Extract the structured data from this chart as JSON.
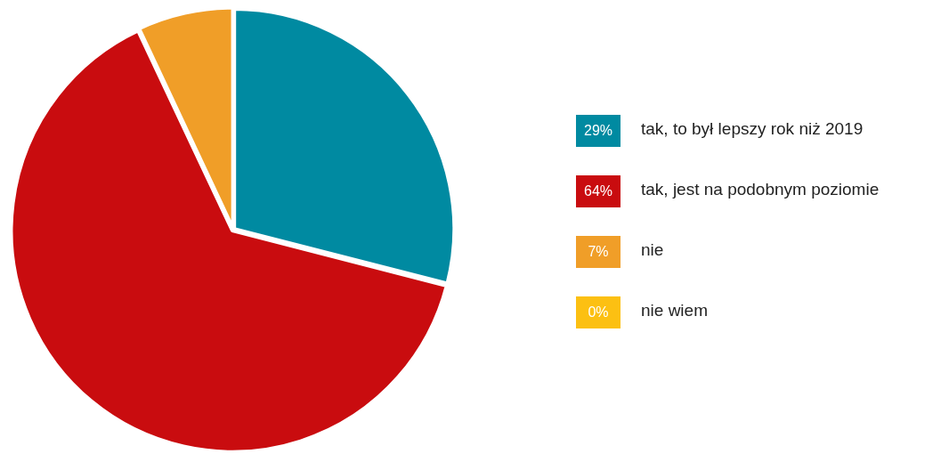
{
  "chart_data": {
    "type": "pie",
    "categories": [
      "tak, to był lepszy rok niż 2019",
      "tak, jest na podobnym poziomie",
      "nie",
      "nie wiem"
    ],
    "values": [
      29,
      64,
      7,
      0
    ],
    "colors": [
      "#008aa1",
      "#c90c0f",
      "#f09e28",
      "#fcc012"
    ],
    "value_labels": [
      "29%",
      "64%",
      "7%",
      "0%"
    ],
    "legend": "right"
  }
}
